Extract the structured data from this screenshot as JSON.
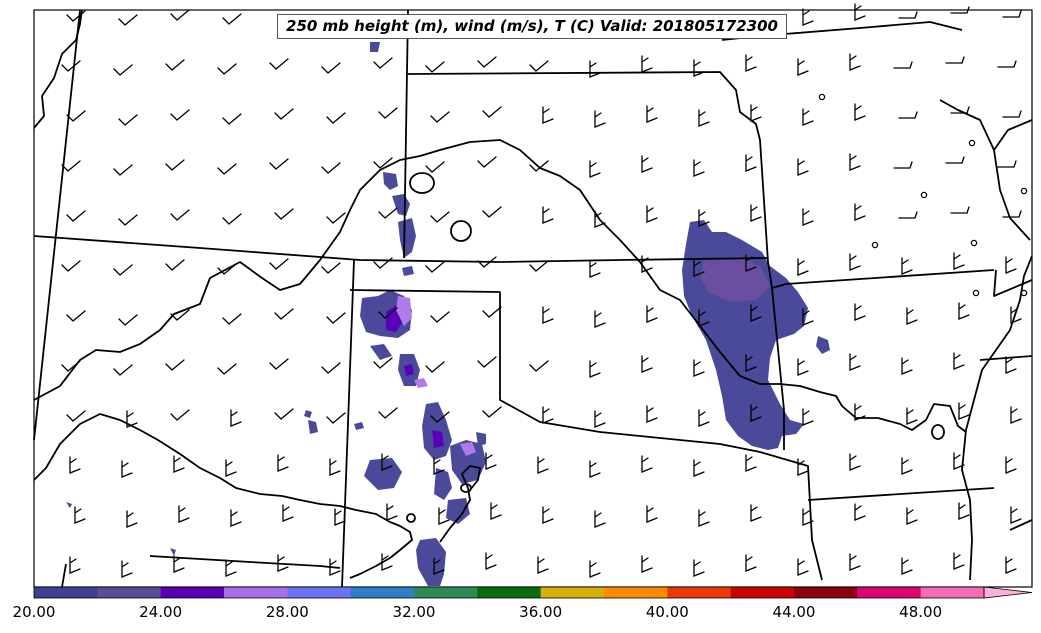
{
  "map": {
    "title": "250 mb height (m), wind (m/s), T (C) Valid: 201805172300",
    "frame_color": "#000000",
    "boundary_color": "#000000",
    "precip_fill": "#4b4a9a",
    "precip_highlights": [
      "#6a4fa0",
      "#5a00b8",
      "#b07be8"
    ]
  },
  "colorbar": {
    "tick_labels": [
      "20.00",
      "24.00",
      "28.00",
      "32.00",
      "36.00",
      "40.00",
      "44.00",
      "48.00"
    ],
    "colors": [
      "#3f3f96",
      "#5b4c98",
      "#5800b0",
      "#a870e8",
      "#6c72f4",
      "#2e7ec8",
      "#2e8a56",
      "#096a0e",
      "#d8ae08",
      "#fd8a00",
      "#ea3a04",
      "#cb0202",
      "#8e0010",
      "#dc0670",
      "#f76cb4"
    ],
    "extend_color": "#ffb0d8",
    "extend": "max"
  }
}
